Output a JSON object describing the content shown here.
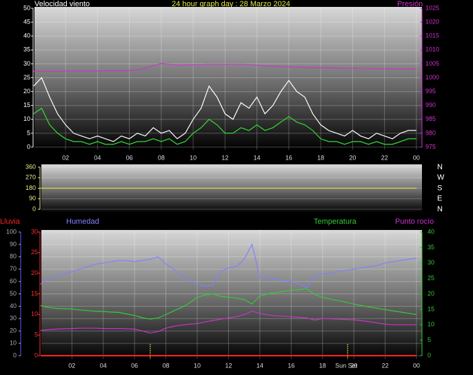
{
  "chart_data": [
    {
      "type": "line",
      "title": "24 hour graph day : 28 Marzo 2024",
      "ylabel": "Velocidad viento",
      "x": [
        0,
        0.5,
        1,
        1.5,
        2,
        2.5,
        3,
        3.5,
        4,
        4.5,
        5,
        5.5,
        6,
        6.5,
        7,
        7.5,
        8,
        8.5,
        9,
        9.5,
        10,
        10.5,
        11,
        11.5,
        12,
        12.5,
        13,
        13.5,
        14,
        14.5,
        15,
        15.5,
        16,
        16.5,
        17,
        17.5,
        18,
        18.5,
        19,
        19.5,
        20,
        20.5,
        21,
        21.5,
        22,
        22.5,
        23,
        23.5,
        24
      ],
      "xlim": [
        0.05,
        24.35
      ],
      "xticks": [
        {
          "value": 2,
          "label": "02"
        },
        {
          "value": 4,
          "label": "04"
        },
        {
          "value": 6,
          "label": "06"
        },
        {
          "value": 8,
          "label": "08"
        },
        10,
        12,
        14,
        16,
        18,
        20,
        22,
        {
          "value": 24,
          "label": "00"
        }
      ],
      "ylim": [
        0,
        50
      ],
      "yticks": [
        0,
        5,
        10,
        15,
        20,
        25,
        30,
        35,
        40,
        45,
        50
      ],
      "y2lim": [
        975,
        1025
      ],
      "y2ticks": [
        975,
        980,
        985,
        990,
        995,
        1000,
        1005,
        1010,
        1015,
        1020,
        1025
      ],
      "grid": true,
      "series": [
        {
          "color": "#ffffff",
          "values": [
            22,
            25,
            18,
            12,
            8,
            5,
            4,
            3,
            4,
            3,
            2,
            4,
            3,
            5,
            4,
            7,
            5,
            6,
            3,
            5,
            10,
            14,
            22,
            18,
            12,
            10,
            16,
            14,
            18,
            12,
            15,
            20,
            24,
            20,
            18,
            12,
            8,
            6,
            5,
            4,
            6,
            4,
            3,
            5,
            4,
            3,
            5,
            6,
            6
          ]
        },
        {
          "color": "#33dd33",
          "values": [
            12,
            14,
            8,
            5,
            3,
            2,
            2,
            1,
            2,
            1,
            1,
            2,
            1,
            2,
            2,
            3,
            2,
            3,
            1,
            2,
            5,
            7,
            10,
            8,
            5,
            5,
            7,
            6,
            8,
            6,
            7,
            9,
            11,
            9,
            8,
            6,
            3,
            2,
            2,
            1,
            2,
            2,
            1,
            2,
            1,
            1,
            2,
            3,
            3
          ]
        },
        {
          "name": "Presión",
          "color": "#cc33cc",
          "axis": "y2",
          "values": [
            1002.3,
            1002.3,
            1002.3,
            1002.3,
            1002.4,
            1002.4,
            1002.4,
            1002.4,
            1002.4,
            1002.5,
            1002.5,
            1002.5,
            1002.6,
            1002.8,
            1003.4,
            1004.4,
            1005.1,
            1004.8,
            1004.6,
            1004.6,
            1004.7,
            1004.7,
            1004.8,
            1004.8,
            1004.8,
            1004.8,
            1004.8,
            1004.7,
            1004.5,
            1004.3,
            1004.1,
            1004.0,
            1003.9,
            1003.8,
            1003.7,
            1003.6,
            1003.6,
            1003.5,
            1003.5,
            1003.4,
            1003.4,
            1003.3,
            1003.3,
            1003.2,
            1003.2,
            1003.2,
            1003.1,
            1003.1,
            1003.1
          ]
        }
      ]
    },
    {
      "type": "line",
      "x": [
        0,
        24
      ],
      "xlim": [
        0.05,
        24.35
      ],
      "ylim": [
        0,
        360
      ],
      "yticks": [
        0,
        90,
        180,
        270,
        360
      ],
      "y2lim": [
        0,
        360
      ],
      "y2ticks": [
        {
          "value": 0,
          "label": "N"
        },
        {
          "value": 90,
          "label": "E"
        },
        {
          "value": 180,
          "label": "S"
        },
        {
          "value": 270,
          "label": "W"
        },
        {
          "value": 360,
          "label": "N"
        }
      ],
      "grid": true,
      "series": [
        {
          "color": "#dddd44",
          "values": [
            180,
            180
          ]
        }
      ]
    },
    {
      "type": "line",
      "x": [
        0,
        0.5,
        1,
        1.5,
        2,
        2.5,
        3,
        3.5,
        4,
        4.5,
        5,
        5.5,
        6,
        6.5,
        7,
        7.5,
        8,
        8.5,
        9,
        9.5,
        10,
        10.5,
        11,
        11.5,
        12,
        12.5,
        13,
        13.5,
        14,
        14.5,
        15,
        15.5,
        16,
        16.5,
        17,
        17.5,
        18,
        18.5,
        19,
        19.5,
        20,
        20.5,
        21,
        21.5,
        22,
        22.5,
        23,
        23.5,
        24
      ],
      "xlim": [
        0.05,
        24.35
      ],
      "xticks": [
        {
          "value": 2,
          "label": "02"
        },
        {
          "value": 4,
          "label": "04"
        },
        {
          "value": 6,
          "label": "06"
        },
        {
          "value": 8,
          "label": "08"
        },
        10,
        12,
        14,
        16,
        18,
        20,
        22,
        {
          "value": 24,
          "label": "00"
        }
      ],
      "ylim": [
        0,
        100
      ],
      "yticks": [
        0,
        10,
        20,
        30,
        40,
        50,
        60,
        70,
        80,
        90,
        100
      ],
      "y2lim": [
        0,
        40
      ],
      "y2ticks": [
        0,
        5,
        10,
        15,
        20,
        25,
        30,
        35,
        40
      ],
      "y3lim": [
        0,
        30
      ],
      "y3ticks": [
        0,
        5,
        10,
        15,
        20,
        25,
        30
      ],
      "grid": true,
      "annotations": [
        {
          "x": 7.0
        },
        {
          "x": 19.6,
          "label": "Sun Set"
        }
      ],
      "series": [
        {
          "name": "Lluvia",
          "color": "#ff2020",
          "axis": "y3",
          "values": [
            0,
            0,
            0,
            0,
            0,
            0,
            0,
            0,
            0,
            0,
            0,
            0,
            0,
            0,
            0,
            0,
            0,
            0,
            0,
            0,
            0,
            0,
            0,
            0,
            0,
            0,
            0,
            0,
            0,
            0,
            0,
            0,
            0,
            0,
            0,
            0,
            0,
            0,
            0,
            0,
            0,
            0,
            0,
            0,
            0,
            0,
            0,
            0,
            0
          ]
        },
        {
          "name": "Humedad",
          "color": "#8080ff",
          "values": [
            58,
            62,
            65,
            66,
            68,
            70,
            72,
            74,
            75,
            76,
            77,
            77,
            76,
            77,
            78,
            80,
            74,
            70,
            65,
            61,
            58,
            56,
            57,
            68,
            71,
            72,
            78,
            90,
            63,
            63,
            62,
            61,
            60,
            58,
            55,
            65,
            66,
            67,
            68,
            69,
            70,
            71,
            72,
            73,
            75,
            76,
            77,
            78,
            79
          ]
        },
        {
          "name": "Temperatura",
          "color": "#33cc33",
          "axis": "y2",
          "values": [
            16.2,
            15.6,
            15.3,
            15.2,
            15.1,
            14.8,
            14.6,
            14.4,
            14.3,
            14.1,
            14,
            13.5,
            13,
            12.3,
            11.8,
            12.2,
            13.3,
            14.5,
            15.6,
            17,
            18.9,
            19.6,
            20,
            19.2,
            18.9,
            18.6,
            18.2,
            16.7,
            19.3,
            20,
            20.4,
            20.8,
            21.1,
            21.4,
            21.6,
            19.8,
            18.9,
            18.3,
            17.8,
            17.3,
            16.7,
            16.2,
            15.7,
            15.3,
            14.9,
            14.5,
            14.1,
            13.7,
            13.3
          ]
        },
        {
          "name": "Punto rocío",
          "color": "#cc33cc",
          "axis": "y2",
          "values": [
            8.2,
            8.4,
            8.6,
            8.7,
            8.8,
            8.9,
            8.9,
            8.9,
            8.8,
            8.8,
            8.8,
            8.7,
            8.6,
            8.0,
            7.3,
            7.8,
            8.9,
            9.5,
            9.9,
            10.2,
            10.4,
            10.9,
            11.4,
            11.8,
            12.2,
            12.6,
            13.3,
            14.4,
            13.6,
            13.2,
            12.9,
            12.8,
            12.6,
            12.4,
            12.2,
            11.5,
            12,
            11.9,
            11.8,
            11.7,
            11.6,
            11.3,
            11,
            10.6,
            10.2,
            10,
            10,
            10,
            10
          ]
        }
      ]
    }
  ]
}
